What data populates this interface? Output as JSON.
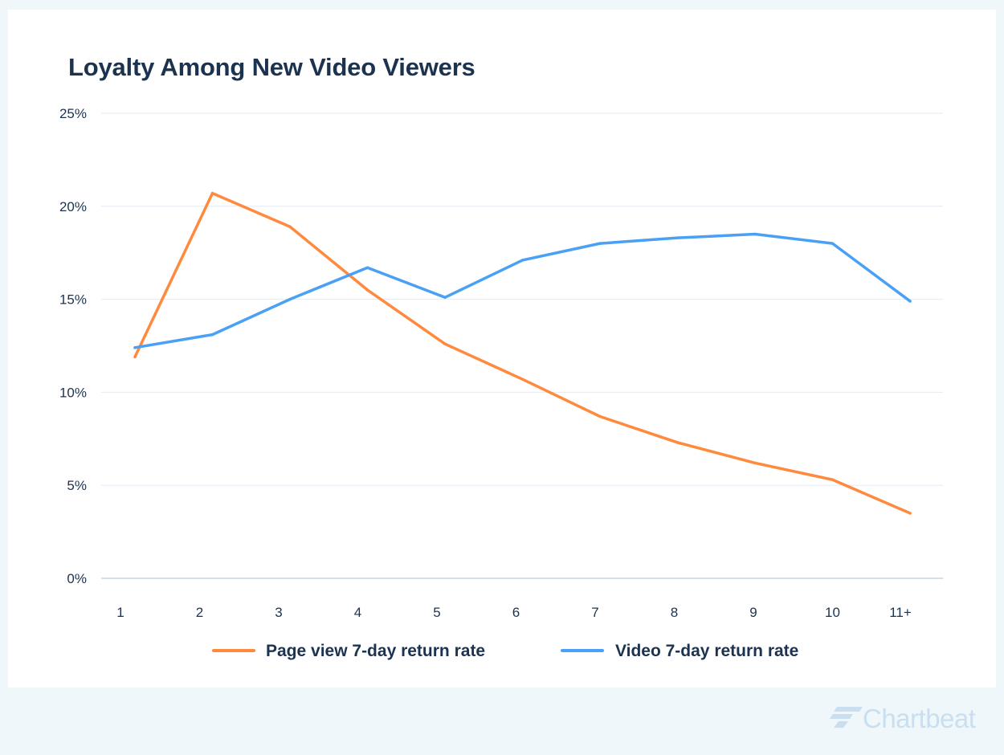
{
  "colors": {
    "page_view": "#ff8a3d",
    "video": "#4aa0f4",
    "title_text": "#1c3350",
    "grid": "#e3ebf2",
    "axis": "#c9d6e3",
    "brand": "#c9dff0"
  },
  "brand": {
    "name": "Chartbeat",
    "icon": "chartbeat-logo-icon"
  },
  "chart_data": {
    "type": "line",
    "title": "Loyalty Among New Video Viewers",
    "xlabel": "",
    "ylabel": "",
    "categories": [
      "1",
      "2",
      "3",
      "4",
      "5",
      "6",
      "7",
      "8",
      "9",
      "10",
      "11+"
    ],
    "y_ticks": [
      "0%",
      "5%",
      "10%",
      "15%",
      "20%",
      "25%"
    ],
    "ylim": [
      0,
      25
    ],
    "grid": true,
    "legend_position": "bottom",
    "series": [
      {
        "name": "Page view 7-day return rate",
        "color": "#ff8a3d",
        "values": [
          11.9,
          20.7,
          18.9,
          15.5,
          12.6,
          10.7,
          8.7,
          7.3,
          6.2,
          5.3,
          3.5
        ]
      },
      {
        "name": "Video 7-day return rate",
        "color": "#4aa0f4",
        "values": [
          12.4,
          13.1,
          15.0,
          16.7,
          15.1,
          17.1,
          18.0,
          18.3,
          18.5,
          18.0,
          14.9
        ]
      }
    ]
  }
}
